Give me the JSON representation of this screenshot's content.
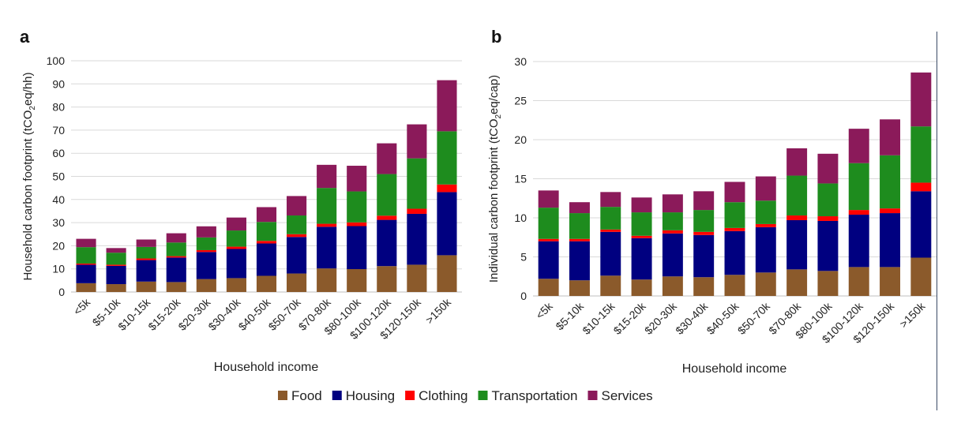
{
  "colors": {
    "Food": "#8B5A2B",
    "Housing": "#000080",
    "Clothing": "#FF0000",
    "Transportation": "#1E8C1E",
    "Services": "#8B1A5A",
    "grid": "#d9d9d9",
    "axis": "#bfbfbf"
  },
  "legend": [
    "Food",
    "Housing",
    "Clothing",
    "Transportation",
    "Services"
  ],
  "chart_data": [
    {
      "type": "bar",
      "stacked": true,
      "panel_label": "a",
      "xlabel": "Household income",
      "ylabel_main": "Household carbon footprint (tCO",
      "ylabel_sub": "2",
      "ylabel_tail": "eq/hh)",
      "ylim": [
        0,
        100
      ],
      "yticks": [
        0,
        10,
        20,
        30,
        40,
        50,
        60,
        70,
        80,
        90,
        100
      ],
      "grid": true,
      "categories": [
        "<5k",
        "$5-10k",
        "$10-15k",
        "$15-20k",
        "$20-30k",
        "$30-40k",
        "$40-50k",
        "$50-70k",
        "$70-80k",
        "$80-100k",
        "$100-120k",
        "$120-150k",
        ">150k"
      ],
      "series": [
        {
          "name": "Food",
          "values": [
            3.8,
            3.4,
            4.5,
            4.3,
            5.6,
            6.0,
            7.0,
            8.0,
            10.2,
            9.9,
            11.2,
            11.8,
            15.9
          ]
        },
        {
          "name": "Housing",
          "values": [
            8.0,
            7.9,
            9.3,
            10.6,
            11.7,
            12.6,
            14.0,
            15.8,
            18.0,
            18.6,
            20.0,
            22.0,
            27.3
          ]
        },
        {
          "name": "Clothing",
          "values": [
            0.5,
            0.5,
            0.7,
            0.6,
            0.8,
            1.0,
            1.1,
            1.2,
            1.3,
            1.6,
            1.8,
            2.2,
            3.3
          ]
        },
        {
          "name": "Transportation",
          "values": [
            7.1,
            5.2,
            5.0,
            5.9,
            5.5,
            7.0,
            8.2,
            8.1,
            15.5,
            13.4,
            18.0,
            21.8,
            23.0
          ]
        },
        {
          "name": "Services",
          "values": [
            3.6,
            2.0,
            3.2,
            4.0,
            4.8,
            5.6,
            6.4,
            8.4,
            10.0,
            11.1,
            13.3,
            14.7,
            22.1
          ]
        }
      ]
    },
    {
      "type": "bar",
      "stacked": true,
      "panel_label": "b",
      "xlabel": "Household income",
      "ylabel_main": "Individual carbon footprint (tCO",
      "ylabel_sub": "2",
      "ylabel_tail": "eq/cap)",
      "ylim": [
        0,
        30
      ],
      "yticks": [
        0,
        5,
        10,
        15,
        20,
        25,
        30
      ],
      "grid": true,
      "categories": [
        "<5k",
        "$5-10k",
        "$10-15k",
        "$15-20k",
        "$20-30k",
        "$30-40k",
        "$40-50k",
        "$50-70k",
        "$70-80k",
        "$80-100k",
        "$100-120k",
        "$120-150k",
        ">150k"
      ],
      "series": [
        {
          "name": "Food",
          "values": [
            2.2,
            2.0,
            2.6,
            2.1,
            2.5,
            2.4,
            2.7,
            3.0,
            3.4,
            3.2,
            3.7,
            3.7,
            4.9
          ]
        },
        {
          "name": "Housing",
          "values": [
            4.8,
            5.0,
            5.6,
            5.3,
            5.5,
            5.4,
            5.6,
            5.8,
            6.3,
            6.4,
            6.7,
            6.9,
            8.5
          ]
        },
        {
          "name": "Clothing",
          "values": [
            0.3,
            0.3,
            0.3,
            0.3,
            0.4,
            0.4,
            0.4,
            0.4,
            0.6,
            0.6,
            0.6,
            0.6,
            1.1
          ]
        },
        {
          "name": "Transportation",
          "values": [
            4.0,
            3.3,
            2.9,
            3.0,
            2.3,
            2.8,
            3.3,
            3.0,
            5.1,
            4.2,
            6.0,
            6.8,
            7.2
          ]
        },
        {
          "name": "Services",
          "values": [
            2.2,
            1.4,
            1.9,
            1.9,
            2.3,
            2.4,
            2.6,
            3.1,
            3.5,
            3.8,
            4.4,
            4.6,
            6.9
          ]
        }
      ]
    }
  ]
}
